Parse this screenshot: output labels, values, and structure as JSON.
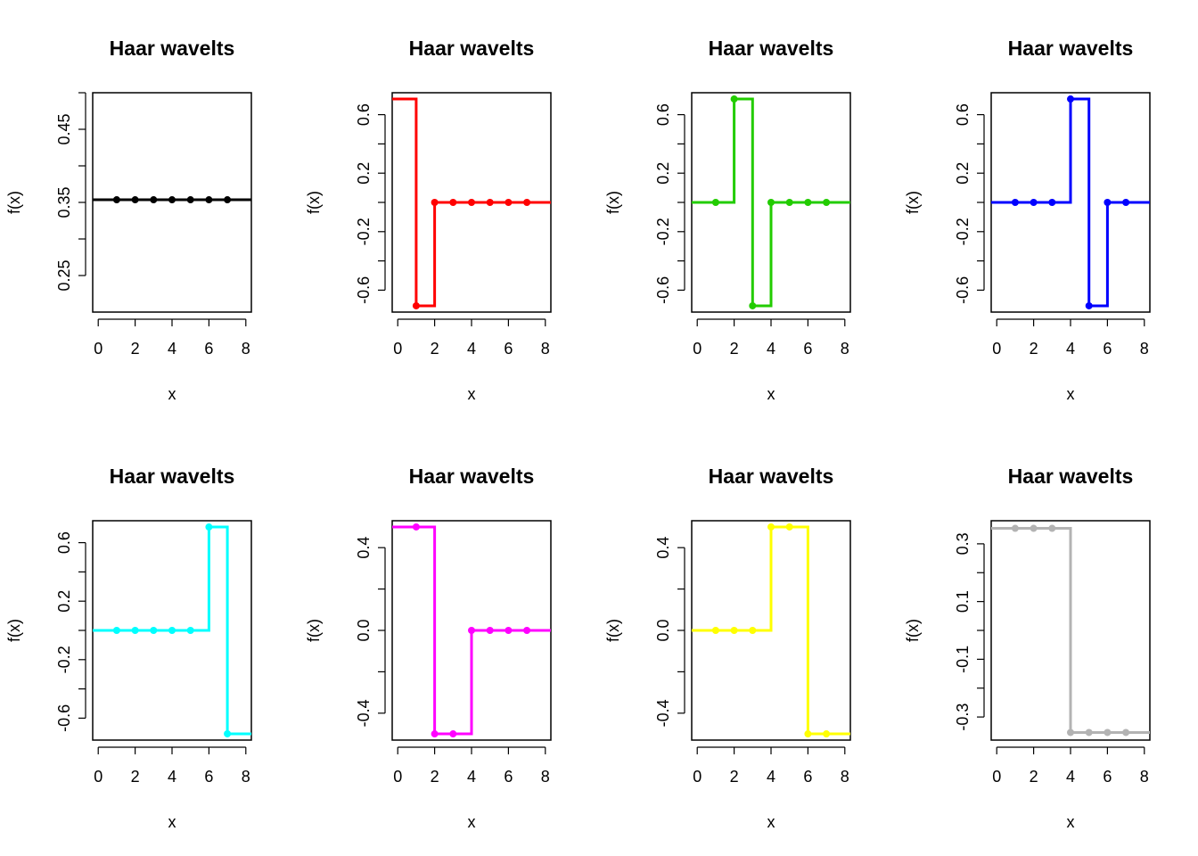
{
  "chart_data": [
    {
      "type": "line",
      "title": "Haar wavelts",
      "xlabel": "x",
      "ylabel": "f(x)",
      "color": "#000000",
      "xlim": [
        -0.3,
        8.3
      ],
      "ylim": [
        0.2,
        0.5
      ],
      "xticks": [
        0,
        2,
        4,
        6,
        8
      ],
      "yticks": [
        0.25,
        0.3,
        0.35,
        0.4,
        0.45,
        0.5
      ],
      "ytick_labels": [
        "0.25",
        "",
        "0.35",
        "",
        "0.45",
        ""
      ],
      "step_x": [
        -0.3,
        8.3
      ],
      "step_y": [
        0.3536,
        0.3536
      ],
      "points_x": [
        1,
        2,
        3,
        4,
        5,
        6,
        7
      ],
      "points_y": [
        0.3536,
        0.3536,
        0.3536,
        0.3536,
        0.3536,
        0.3536,
        0.3536
      ]
    },
    {
      "type": "line",
      "title": "Haar wavelts",
      "xlabel": "x",
      "ylabel": "f(x)",
      "color": "#ff0000",
      "xlim": [
        -0.3,
        8.3
      ],
      "ylim": [
        -0.75,
        0.75
      ],
      "xticks": [
        0,
        2,
        4,
        6,
        8
      ],
      "yticks": [
        -0.6,
        -0.4,
        -0.2,
        0,
        0.2,
        0.4,
        0.6
      ],
      "ytick_labels": [
        "-0.6",
        "",
        "-0.2",
        "",
        "0.2",
        "",
        "0.6"
      ],
      "step_x": [
        -0.3,
        1,
        1,
        2,
        2,
        8.3
      ],
      "step_y": [
        0.7071,
        0.7071,
        -0.7071,
        -0.7071,
        0,
        0
      ],
      "points_x": [
        1,
        2,
        3,
        4,
        5,
        6,
        7
      ],
      "points_y": [
        -0.7071,
        0,
        0,
        0,
        0,
        0,
        0
      ]
    },
    {
      "type": "line",
      "title": "Haar wavelts",
      "xlabel": "x",
      "ylabel": "f(x)",
      "color": "#22cc00",
      "xlim": [
        -0.3,
        8.3
      ],
      "ylim": [
        -0.75,
        0.75
      ],
      "xticks": [
        0,
        2,
        4,
        6,
        8
      ],
      "yticks": [
        -0.6,
        -0.4,
        -0.2,
        0,
        0.2,
        0.4,
        0.6
      ],
      "ytick_labels": [
        "-0.6",
        "",
        "-0.2",
        "",
        "0.2",
        "",
        "0.6"
      ],
      "step_x": [
        -0.3,
        2,
        2,
        3,
        3,
        4,
        4,
        8.3
      ],
      "step_y": [
        0,
        0,
        0.7071,
        0.7071,
        -0.7071,
        -0.7071,
        0,
        0
      ],
      "points_x": [
        1,
        2,
        3,
        4,
        5,
        6,
        7
      ],
      "points_y": [
        0,
        0.7071,
        -0.7071,
        0,
        0,
        0,
        0
      ]
    },
    {
      "type": "line",
      "title": "Haar wavelts",
      "xlabel": "x",
      "ylabel": "f(x)",
      "color": "#0000ff",
      "xlim": [
        -0.3,
        8.3
      ],
      "ylim": [
        -0.75,
        0.75
      ],
      "xticks": [
        0,
        2,
        4,
        6,
        8
      ],
      "yticks": [
        -0.6,
        -0.4,
        -0.2,
        0,
        0.2,
        0.4,
        0.6
      ],
      "ytick_labels": [
        "-0.6",
        "",
        "-0.2",
        "",
        "0.2",
        "",
        "0.6"
      ],
      "step_x": [
        -0.3,
        4,
        4,
        5,
        5,
        6,
        6,
        8.3
      ],
      "step_y": [
        0,
        0,
        0.7071,
        0.7071,
        -0.7071,
        -0.7071,
        0,
        0
      ],
      "points_x": [
        1,
        2,
        3,
        4,
        5,
        6,
        7
      ],
      "points_y": [
        0,
        0,
        0,
        0.7071,
        -0.7071,
        0,
        0
      ]
    },
    {
      "type": "line",
      "title": "Haar wavelts",
      "xlabel": "x",
      "ylabel": "f(x)",
      "color": "#00ffff",
      "xlim": [
        -0.3,
        8.3
      ],
      "ylim": [
        -0.75,
        0.75
      ],
      "xticks": [
        0,
        2,
        4,
        6,
        8
      ],
      "yticks": [
        -0.6,
        -0.4,
        -0.2,
        0,
        0.2,
        0.4,
        0.6
      ],
      "ytick_labels": [
        "-0.6",
        "",
        "-0.2",
        "",
        "0.2",
        "",
        "0.6"
      ],
      "step_x": [
        -0.3,
        6,
        6,
        7,
        7,
        8.3
      ],
      "step_y": [
        0,
        0,
        0.7071,
        0.7071,
        -0.7071,
        -0.7071
      ],
      "points_x": [
        1,
        2,
        3,
        4,
        5,
        6,
        7
      ],
      "points_y": [
        0,
        0,
        0,
        0,
        0,
        0.7071,
        -0.7071
      ]
    },
    {
      "type": "line",
      "title": "Haar wavelts",
      "xlabel": "x",
      "ylabel": "f(x)",
      "color": "#ff00ff",
      "xlim": [
        -0.3,
        8.3
      ],
      "ylim": [
        -0.53,
        0.53
      ],
      "xticks": [
        0,
        2,
        4,
        6,
        8
      ],
      "yticks": [
        -0.4,
        -0.2,
        0,
        0.2,
        0.4
      ],
      "ytick_labels": [
        "-0.4",
        "",
        "0.0",
        "",
        "0.4"
      ],
      "step_x": [
        -0.3,
        2,
        2,
        4,
        4,
        8.3
      ],
      "step_y": [
        0.5,
        0.5,
        -0.5,
        -0.5,
        0,
        0
      ],
      "points_x": [
        1,
        2,
        3,
        4,
        5,
        6,
        7
      ],
      "points_y": [
        0.5,
        -0.5,
        -0.5,
        0,
        0,
        0,
        0
      ]
    },
    {
      "type": "line",
      "title": "Haar wavelts",
      "xlabel": "x",
      "ylabel": "f(x)",
      "color": "#ffff00",
      "xlim": [
        -0.3,
        8.3
      ],
      "ylim": [
        -0.53,
        0.53
      ],
      "xticks": [
        0,
        2,
        4,
        6,
        8
      ],
      "yticks": [
        -0.4,
        -0.2,
        0,
        0.2,
        0.4
      ],
      "ytick_labels": [
        "-0.4",
        "",
        "0.0",
        "",
        "0.4"
      ],
      "step_x": [
        -0.3,
        4,
        4,
        6,
        6,
        8.3
      ],
      "step_y": [
        0,
        0,
        0.5,
        0.5,
        -0.5,
        -0.5
      ],
      "points_x": [
        1,
        2,
        3,
        4,
        5,
        6,
        7
      ],
      "points_y": [
        0,
        0,
        0,
        0.5,
        0.5,
        -0.5,
        -0.5
      ]
    },
    {
      "type": "line",
      "title": "Haar wavelts",
      "xlabel": "x",
      "ylabel": "f(x)",
      "color": "#b3b3b3",
      "xlim": [
        -0.3,
        8.3
      ],
      "ylim": [
        -0.38,
        0.38
      ],
      "xticks": [
        0,
        2,
        4,
        6,
        8
      ],
      "yticks": [
        -0.3,
        -0.2,
        -0.1,
        0,
        0.1,
        0.2,
        0.3
      ],
      "ytick_labels": [
        "-0.3",
        "",
        "-0.1",
        "",
        "0.1",
        "",
        "0.3"
      ],
      "step_x": [
        -0.3,
        4,
        4,
        8.3
      ],
      "step_y": [
        0.3536,
        0.3536,
        -0.3536,
        -0.3536
      ],
      "points_x": [
        1,
        2,
        3,
        4,
        5,
        6,
        7
      ],
      "points_y": [
        0.3536,
        0.3536,
        0.3536,
        -0.3536,
        -0.3536,
        -0.3536,
        -0.3536
      ]
    }
  ]
}
